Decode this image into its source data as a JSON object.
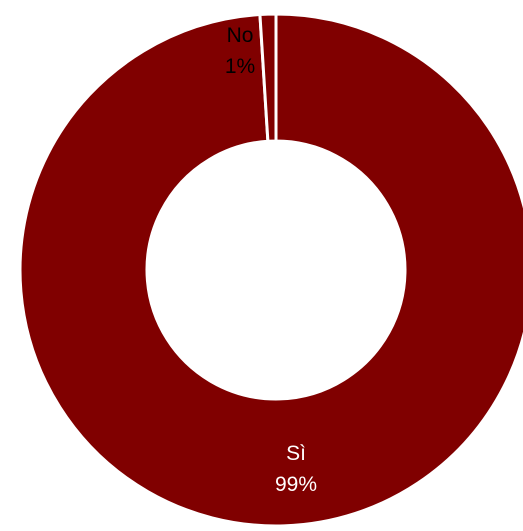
{
  "chart_data": {
    "type": "pie",
    "donut": true,
    "categories": [
      "Sì",
      "No"
    ],
    "values": [
      99,
      1
    ],
    "data_labels": [
      {
        "category": "Sì",
        "percent": "99%"
      },
      {
        "category": "No",
        "percent": "1%"
      }
    ],
    "colors": [
      "#800000",
      "#800000"
    ],
    "label_colors": [
      "#ffffff",
      "#000000"
    ],
    "separator_color": "#ffffff",
    "background": "#ffffff"
  }
}
